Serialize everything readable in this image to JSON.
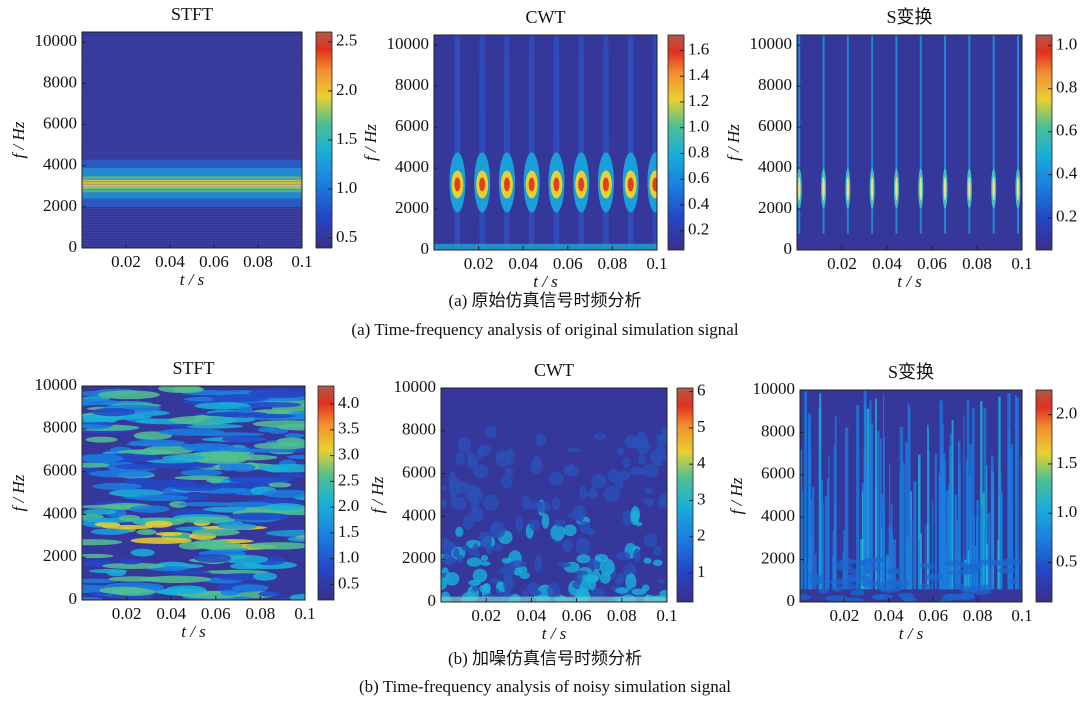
{
  "chart_data": [
    {
      "type": "heatmap",
      "title": "STFT",
      "x_label": "t / s",
      "y_label": "f / Hz",
      "xlim": [
        0,
        0.1
      ],
      "xticks": [
        0.02,
        0.04,
        0.06,
        0.08,
        0.1
      ],
      "ylim": [
        0,
        10500
      ],
      "yticks": [
        0,
        2000,
        4000,
        6000,
        8000,
        10000
      ],
      "clim": [
        0.4,
        2.6
      ],
      "cticks": [
        0.5,
        {
          "value": 1,
          "label": "1.0"
        },
        1.5,
        {
          "value": 2,
          "label": "2.0"
        },
        2.5
      ]
    },
    {
      "type": "heatmap",
      "title": "CWT",
      "x_label": "t / s",
      "y_label": "f / Hz",
      "xlim": [
        0,
        0.1
      ],
      "xticks": [
        0.02,
        0.04,
        0.06,
        0.08,
        0.1
      ],
      "ylim": [
        0,
        10500
      ],
      "yticks": [
        0,
        2000,
        4000,
        6000,
        8000,
        10000
      ],
      "clim": [
        0.05,
        1.72
      ],
      "cticks": [
        0.2,
        0.4,
        0.6,
        0.8,
        {
          "value": 1,
          "label": "1.0"
        },
        1.2,
        1.4,
        1.6
      ]
    },
    {
      "type": "heatmap",
      "title": "S变换",
      "x_label": "t / s",
      "y_label": "f / Hz",
      "xlim": [
        0,
        0.1
      ],
      "xticks": [
        0.02,
        0.04,
        0.06,
        0.08,
        0.1
      ],
      "ylim": [
        0,
        10500
      ],
      "yticks": [
        0,
        2000,
        4000,
        6000,
        8000,
        10000
      ],
      "clim": [
        0.05,
        1.05
      ],
      "cticks": [
        0.2,
        0.4,
        0.6,
        0.8,
        {
          "value": 1,
          "label": "1.0"
        }
      ]
    },
    {
      "type": "heatmap",
      "title": "STFT",
      "x_label": "t / s",
      "y_label": "f / Hz",
      "xlim": [
        0,
        0.1
      ],
      "xticks": [
        0.02,
        0.04,
        0.06,
        0.08,
        0.1
      ],
      "ylim": [
        0,
        10000
      ],
      "yticks": [
        0,
        2000,
        4000,
        6000,
        8000,
        10000
      ],
      "clim": [
        0.2,
        4.35
      ],
      "cticks": [
        0.5,
        {
          "value": 1,
          "label": "1.0"
        },
        1.5,
        {
          "value": 2,
          "label": "2.0"
        },
        2.5,
        {
          "value": 3,
          "label": "3.0"
        },
        3.5,
        {
          "value": 4,
          "label": "4.0"
        }
      ]
    },
    {
      "type": "heatmap",
      "title": "CWT",
      "x_label": "t / s",
      "y_label": "f / Hz",
      "xlim": [
        0,
        0.1
      ],
      "xticks": [
        0.02,
        0.04,
        0.06,
        0.08,
        0.1
      ],
      "ylim": [
        0,
        10000
      ],
      "yticks": [
        0,
        2000,
        4000,
        6000,
        8000,
        10000
      ],
      "clim": [
        0.2,
        6.1
      ],
      "cticks": [
        1,
        2,
        3,
        4,
        5,
        6
      ]
    },
    {
      "type": "heatmap",
      "title": "S变换",
      "x_label": "t / s",
      "y_label": "f / Hz",
      "xlim": [
        0,
        0.1
      ],
      "xticks": [
        0.02,
        0.04,
        0.06,
        0.08,
        0.1
      ],
      "ylim": [
        0,
        10000
      ],
      "yticks": [
        0,
        2000,
        4000,
        6000,
        8000,
        10000
      ],
      "clim": [
        0.1,
        2.25
      ],
      "cticks": [
        0.5,
        {
          "value": 1,
          "label": "1.0"
        },
        1.5,
        {
          "value": 2,
          "label": "2.0"
        }
      ]
    }
  ],
  "captions": [
    {
      "zh": "(a) 原始仿真信号时频分析",
      "en": "(a) Time-frequency analysis of original simulation signal"
    },
    {
      "zh": "(b) 加噪仿真信号时频分析",
      "en": "(b) Time-frequency analysis of noisy simulation signal"
    }
  ]
}
